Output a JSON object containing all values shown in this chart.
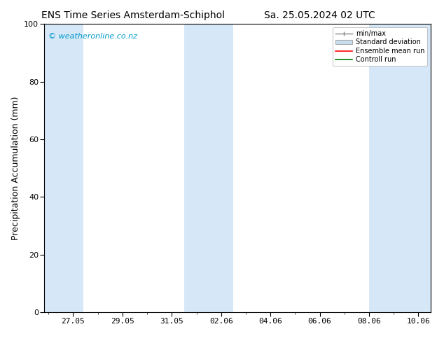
{
  "title_left": "ENS Time Series Amsterdam-Schiphol",
  "title_right": "Sa. 25.05.2024 02 UTC",
  "ylabel": "Precipitation Accumulation (mm)",
  "ylim": [
    0,
    100
  ],
  "yticks": [
    0,
    20,
    40,
    60,
    80,
    100
  ],
  "x_tick_labels": [
    "27.05",
    "29.05",
    "31.05",
    "02.06",
    "04.06",
    "06.06",
    "08.06",
    "10.06"
  ],
  "watermark": "© weatheronline.co.nz",
  "watermark_color": "#0099cc",
  "bg_color": "#ffffff",
  "plot_bg_color": "#ffffff",
  "shaded_band_color": "#d6e8f7",
  "legend_entries": [
    "min/max",
    "Standard deviation",
    "Ensemble mean run",
    "Controll run"
  ],
  "font_size_title": 10,
  "font_size_labels": 9,
  "font_size_ticks": 8,
  "font_size_watermark": 8
}
